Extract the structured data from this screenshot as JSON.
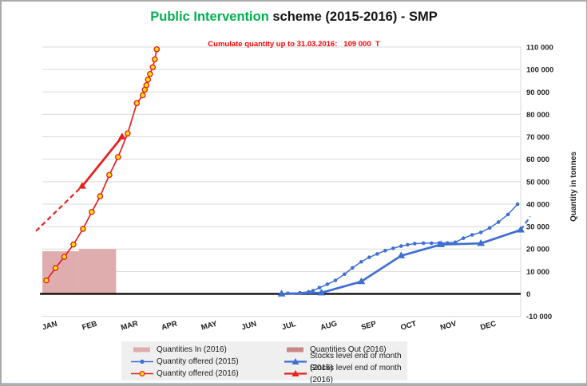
{
  "figure": {
    "title_green": "Public Intervention ",
    "title_rest": "scheme (2015-2016) - SMP",
    "subtitle": "Cumulate quantity up to 31.03.2016:   109 000  T"
  },
  "colors": {
    "blue": "#3f6fd1",
    "red": "#e42320",
    "marker_yellow": "#ffe600",
    "bar_in": "#dfadad",
    "bar_out": "#c98886",
    "gridline": "#d9d9d9",
    "zero_line": "#000000",
    "axis_text": "#262626",
    "title_green": "#00b050",
    "subtitle_red": "#ff0000",
    "legend_bg": "#efefef"
  },
  "chart_data": {
    "type": "line",
    "title": "Public Intervention scheme (2015-2016) - SMP",
    "subtitle": "Cumulate quantity up to 31.03.2016: 109 000 T",
    "x_categories": [
      "JAN",
      "FEB",
      "MAR",
      "APR",
      "MAY",
      "JUN",
      "JUL",
      "AUG",
      "SEP",
      "OCT",
      "NOV",
      "DEC"
    ],
    "y_axis": {
      "min": -10000,
      "max": 110000,
      "step": 10000,
      "title": "Quantity in tonnes"
    },
    "grid": "horizontal",
    "bars": [
      {
        "name": "Quantities In (2016)",
        "color": "#dfadad",
        "rects": [
          {
            "from": 0.0,
            "to": 0.92,
            "value": 19000
          },
          {
            "from": 0.92,
            "to": 1.85,
            "value": 20000
          }
        ]
      },
      {
        "name": "Quantities Out (2016)",
        "color": "#c98886",
        "rects": []
      }
    ],
    "series": [
      {
        "id": "stocks_2015",
        "name": "Stocks level end of month (2015)",
        "color": "#3f6fd1",
        "marker": "triangle",
        "width": 2.7,
        "points": [
          [
            6,
            0
          ],
          [
            7,
            500
          ],
          [
            8,
            5500
          ],
          [
            9,
            17000
          ],
          [
            10,
            22000
          ],
          [
            11,
            22500
          ],
          [
            12,
            28500
          ]
        ],
        "dash_ext": [
          [
            12,
            28500
          ],
          [
            12.24,
            34500
          ]
        ]
      },
      {
        "id": "offered_2015",
        "name": "Quantity offered (2015)",
        "color": "#3f6fd1",
        "marker": "dot",
        "width": 1.5,
        "points": [
          [
            6.16,
            300
          ],
          [
            6.46,
            500
          ],
          [
            6.68,
            900
          ],
          [
            6.79,
            1400
          ],
          [
            6.95,
            2800
          ],
          [
            7.15,
            4300
          ],
          [
            7.35,
            6000
          ],
          [
            7.58,
            8800
          ],
          [
            7.78,
            11600
          ],
          [
            8.0,
            14300
          ],
          [
            8.2,
            16300
          ],
          [
            8.4,
            17800
          ],
          [
            8.6,
            19300
          ],
          [
            8.8,
            20300
          ],
          [
            9.0,
            21300
          ],
          [
            9.16,
            21900
          ],
          [
            9.34,
            22400
          ],
          [
            9.56,
            22600
          ],
          [
            9.76,
            22600
          ],
          [
            9.96,
            22700
          ],
          [
            10.16,
            22700
          ],
          [
            10.36,
            23000
          ],
          [
            10.56,
            24800
          ],
          [
            10.78,
            26300
          ],
          [
            11.0,
            27400
          ],
          [
            11.22,
            29400
          ],
          [
            11.44,
            32000
          ],
          [
            11.68,
            35400
          ],
          [
            11.92,
            40000
          ]
        ]
      },
      {
        "id": "stocks_2016",
        "name": "Stocks level end of month (2016)",
        "color": "#e42320",
        "marker": "triangle",
        "width": 2.8,
        "points": [
          [
            1,
            48000
          ],
          [
            2,
            70000
          ]
        ],
        "dash_lead": [
          [
            -0.16,
            28000
          ],
          [
            1,
            48000
          ]
        ]
      },
      {
        "id": "offered_2016",
        "name": "Quantity offered (2016)",
        "color": "#e42320",
        "marker": "ring",
        "marker_fill": "#ffe600",
        "width": 1.7,
        "points": [
          [
            0.1,
            6000
          ],
          [
            0.33,
            11500
          ],
          [
            0.55,
            16500
          ],
          [
            0.78,
            22000
          ],
          [
            1.02,
            29000
          ],
          [
            1.24,
            36500
          ],
          [
            1.45,
            43500
          ],
          [
            1.68,
            53000
          ],
          [
            1.9,
            61000
          ],
          [
            2.14,
            71500
          ],
          [
            2.37,
            85000
          ],
          [
            2.52,
            88500
          ],
          [
            2.57,
            91000
          ],
          [
            2.61,
            93000
          ],
          [
            2.65,
            95500
          ],
          [
            2.7,
            98000
          ],
          [
            2.77,
            101000
          ],
          [
            2.82,
            104500
          ],
          [
            2.87,
            109000
          ]
        ]
      }
    ]
  },
  "legend": {
    "items": [
      {
        "swatch": "bar",
        "color": "#dfadad",
        "label": "Quantities In (2016)"
      },
      {
        "swatch": "line-dot",
        "color": "#3f6fd1",
        "label": "Quantity offered (2015)"
      },
      {
        "swatch": "line-ring",
        "color": "#e42320",
        "fill": "#ffe600",
        "label": "Quantity offered (2016)"
      },
      {
        "swatch": "bar",
        "color": "#c98886",
        "label": "Quantities Out (2016)"
      },
      {
        "swatch": "line-tri",
        "color": "#3f6fd1",
        "label": "Stocks level end of month (2015)"
      },
      {
        "swatch": "line-tri",
        "color": "#e42320",
        "label": "Stocks level end of month (2016)"
      }
    ]
  }
}
